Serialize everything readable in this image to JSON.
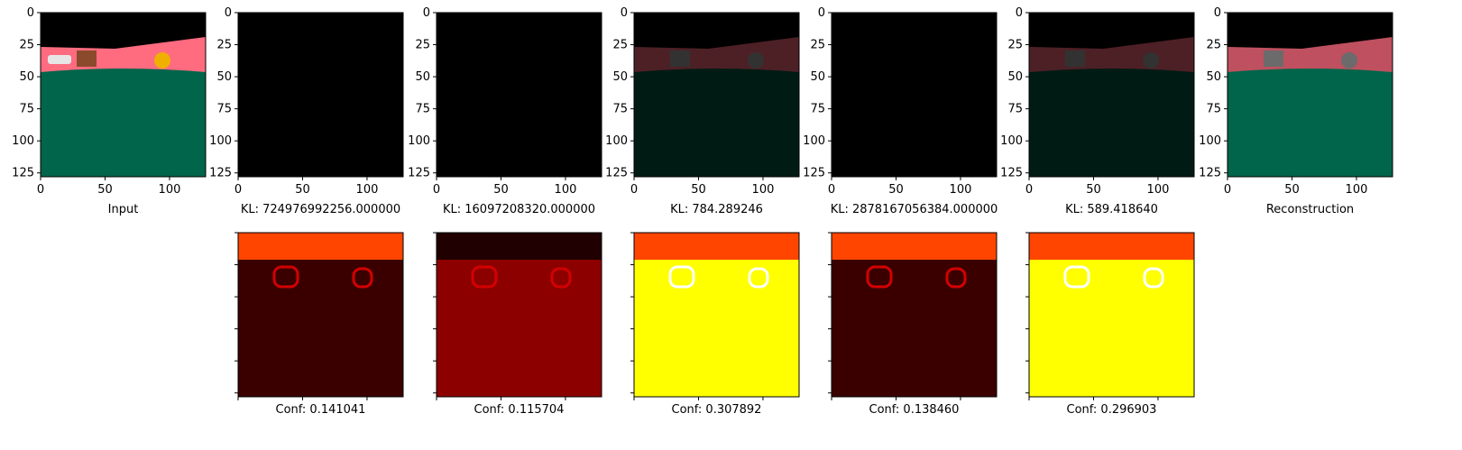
{
  "figure": {
    "top_row": [
      {
        "kind": "input",
        "xlabel": "Input",
        "mask": false
      },
      {
        "kind": "mask",
        "xlabel": "KL: 724976992256.000000",
        "mask": true,
        "brightness": 0.0
      },
      {
        "kind": "mask",
        "xlabel": "KL: 16097208320.000000",
        "mask": true,
        "brightness": 0.0
      },
      {
        "kind": "mask",
        "xlabel": "KL: 784.289246",
        "mask": true,
        "brightness": 0.3
      },
      {
        "kind": "mask",
        "xlabel": "KL: 2878167056384.000000",
        "mask": true,
        "brightness": 0.0
      },
      {
        "kind": "mask",
        "xlabel": "KL: 589.418640",
        "mask": true,
        "brightness": 0.3
      },
      {
        "kind": "recon",
        "xlabel": "Reconstruction",
        "mask": false
      }
    ],
    "bottom_row": [
      {
        "col": 1,
        "xlabel": "Conf: 0.141041",
        "level": 0.141041,
        "heat": "dark"
      },
      {
        "col": 2,
        "xlabel": "Conf: 0.115704",
        "level": 0.115704,
        "heat": "red"
      },
      {
        "col": 3,
        "xlabel": "Conf: 0.307892",
        "level": 0.307892,
        "heat": "yellow"
      },
      {
        "col": 4,
        "xlabel": "Conf: 0.138460",
        "level": 0.13846,
        "heat": "dark"
      },
      {
        "col": 5,
        "xlabel": "Conf: 0.296903",
        "level": 0.296903,
        "heat": "yellow"
      }
    ]
  },
  "chart_data": {
    "type": "heatmap",
    "image_size": [
      128,
      128
    ],
    "xticks": [
      "0",
      "50",
      "100"
    ],
    "yticks": [
      "0",
      "25",
      "50",
      "75",
      "100",
      "125"
    ],
    "xtick_values": [
      0,
      50,
      100
    ],
    "ytick_values": [
      0,
      25,
      50,
      75,
      100,
      125
    ],
    "xlim": [
      0,
      128
    ],
    "ylim": [
      128,
      0
    ],
    "colors": {
      "sky": "#000000",
      "wall": "#ff6b7f",
      "floor": "#00654a",
      "heat_dark": "#3a0000",
      "heat_red": "#8c0000",
      "heat_yellow": "#ffff00",
      "heat_orange": "#ff4500"
    }
  }
}
